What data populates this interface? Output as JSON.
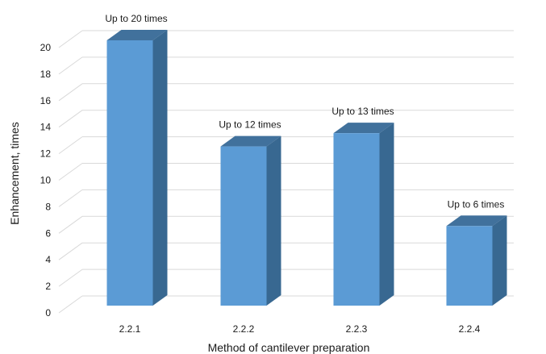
{
  "chart_data": {
    "type": "bar",
    "style": "3d-column",
    "title": "",
    "xlabel": "Method of cantilever preparation",
    "ylabel": "Enhancement, times",
    "categories": [
      "2.2.1",
      "2.2.2",
      "2.2.3",
      "2.2.4"
    ],
    "values": [
      20,
      12,
      13,
      6
    ],
    "data_labels": [
      "Up to 20 times",
      "Up to 12 times",
      "Up to 13 times",
      "Up to 6 times"
    ],
    "yticks": [
      "0",
      "2",
      "4",
      "6",
      "8",
      "10",
      "12",
      "14",
      "16",
      "18",
      "20"
    ],
    "ylim": [
      0,
      20
    ],
    "grid": true,
    "legend": "none",
    "colors": {
      "front": "#5b9bd5",
      "top": "#41719c",
      "side": "#386891",
      "gridline": "#d9d9d9"
    }
  }
}
